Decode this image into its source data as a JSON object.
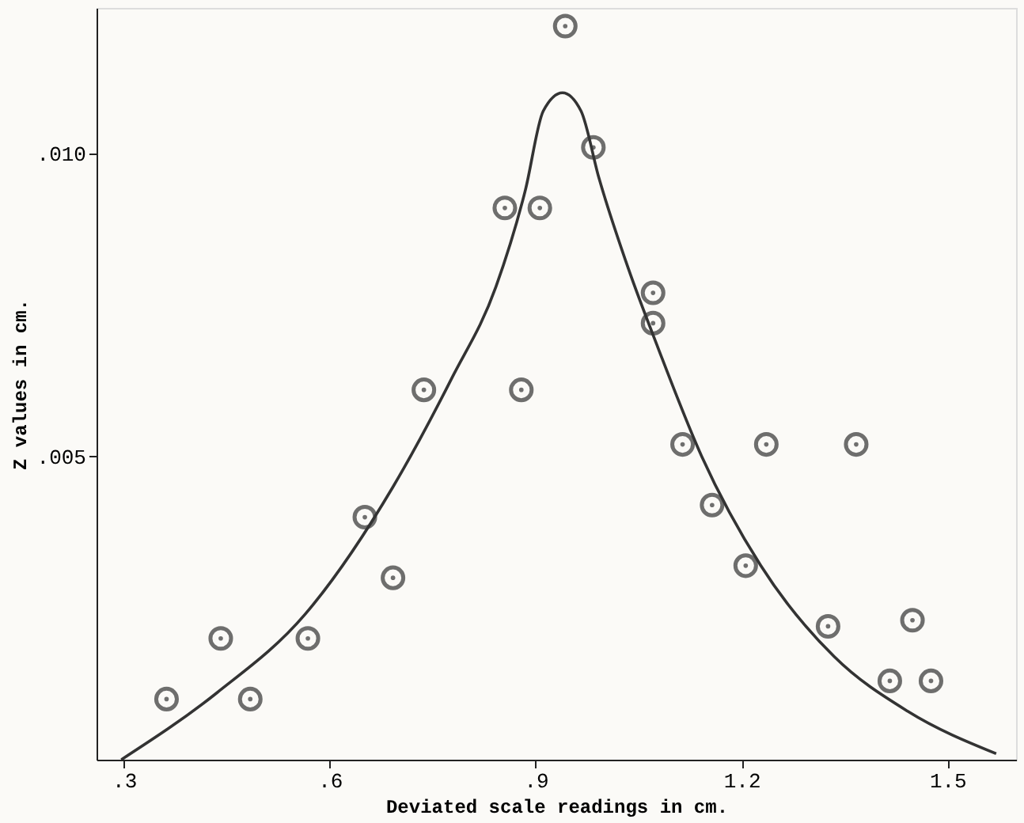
{
  "chart_data": {
    "type": "scatter",
    "xlabel": "Deviated scale readings in cm.",
    "ylabel": "Z values in cm.",
    "xlim": [
      0.26,
      1.6
    ],
    "ylim": [
      0,
      0.0124
    ],
    "xticks": [
      {
        "value": 0.3,
        "label": ".3"
      },
      {
        "value": 0.6,
        "label": ".6"
      },
      {
        "value": 0.9,
        "label": ".9"
      },
      {
        "value": 1.2,
        "label": "1.2"
      },
      {
        "value": 1.5,
        "label": "1.5"
      }
    ],
    "yticks": [
      {
        "value": 0.005,
        "label": ".005"
      },
      {
        "value": 0.01,
        "label": ".010"
      }
    ],
    "grid": false,
    "marker": "circle",
    "series": [
      {
        "color": "#333333",
        "x": [
          0.362,
          0.441,
          0.484,
          0.568,
          0.651,
          0.692,
          0.737,
          0.879,
          0.855,
          0.906,
          0.943,
          0.984,
          1.071,
          1.071,
          1.114,
          1.157,
          1.206,
          1.236,
          1.367,
          1.326,
          1.416,
          1.449,
          1.476
        ],
        "values": [
          0.001,
          0.002,
          0.001,
          0.002,
          0.004,
          0.003,
          0.0061,
          0.0061,
          0.0091,
          0.0091,
          0.0121,
          0.0101,
          0.0077,
          0.0072,
          0.0052,
          0.0042,
          0.0032,
          0.0052,
          0.0052,
          0.0022,
          0.0013,
          0.0023,
          0.0013
        ]
      },
      {
        "type": "line",
        "color": "#333333",
        "marker": "none",
        "line_style": "solid",
        "x": [
          0.296,
          0.435,
          0.564,
          0.692,
          0.778,
          0.842,
          0.885,
          0.911,
          0.939,
          0.966,
          0.992,
          1.035,
          1.078,
          1.142,
          1.228,
          1.335,
          1.442,
          1.571
        ],
        "values": [
          0.0,
          0.0011,
          0.0024,
          0.0045,
          0.0063,
          0.0078,
          0.0094,
          0.0107,
          0.011,
          0.0107,
          0.0096,
          0.0081,
          0.0068,
          0.005,
          0.0032,
          0.0017,
          0.0008,
          0.0001
        ]
      }
    ]
  }
}
